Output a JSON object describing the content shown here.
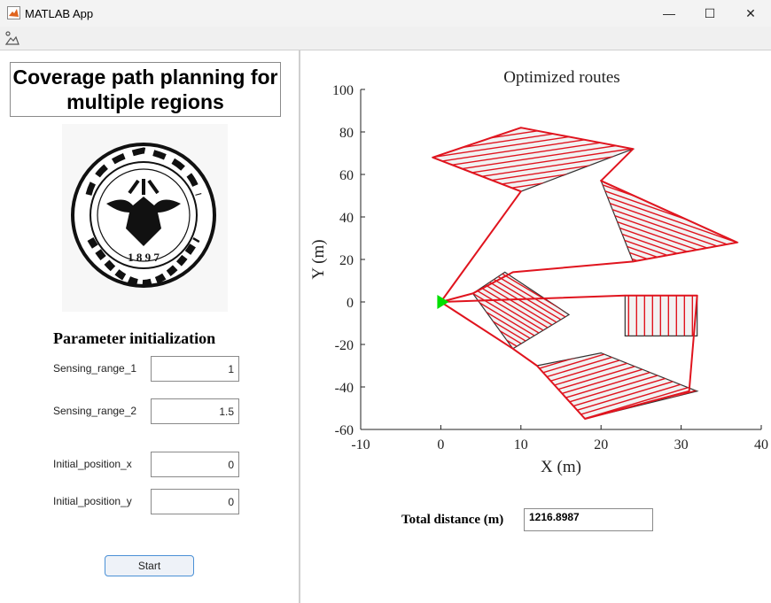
{
  "window": {
    "title": "MATLAB App",
    "minimize": "—",
    "maximize": "☐",
    "close": "✕"
  },
  "toolbar": {
    "icon": "figure-tools-icon"
  },
  "left": {
    "title": "Coverage path planning for multiple regions",
    "logo_text": "浙江大学 ZHEJIANG UNIVERSITY 1897",
    "param_heading": "Parameter initialization",
    "fields": [
      {
        "label": "Sensing_range_1",
        "value": "1"
      },
      {
        "label": "Sensing_range_2",
        "value": "1.5"
      },
      {
        "label": "Initial_position_x",
        "value": "0"
      },
      {
        "label": "Initial_position_y",
        "value": "0"
      }
    ],
    "start_label": "Start"
  },
  "chart_data": {
    "type": "line",
    "title": "Optimized routes",
    "xlabel": "X (m)",
    "ylabel": "Y (m)",
    "xlim": [
      -10,
      40
    ],
    "ylim": [
      -60,
      100
    ],
    "xticks": [
      "-10",
      "0",
      "10",
      "20",
      "30",
      "40"
    ],
    "yticks": [
      "100",
      "80",
      "60",
      "40",
      "20",
      "0",
      "-20",
      "-40",
      "-60"
    ],
    "start_point": [
      0,
      0
    ],
    "regions": [
      [
        [
          -1,
          68
        ],
        [
          10,
          82
        ],
        [
          24,
          72
        ],
        [
          10,
          52
        ]
      ],
      [
        [
          20,
          57
        ],
        [
          37,
          28
        ],
        [
          24,
          19
        ]
      ],
      [
        [
          8,
          14
        ],
        [
          16,
          -6
        ],
        [
          9,
          -22
        ],
        [
          4,
          4
        ]
      ],
      [
        [
          23,
          3
        ],
        [
          32,
          3
        ],
        [
          32,
          -16
        ],
        [
          23,
          -16
        ]
      ],
      [
        [
          12,
          -30
        ],
        [
          20,
          -24
        ],
        [
          32,
          -42
        ],
        [
          18,
          -55
        ]
      ]
    ],
    "route": [
      [
        0,
        0
      ],
      [
        10,
        52
      ],
      [
        -1,
        68
      ],
      [
        10,
        82
      ],
      [
        24,
        72
      ],
      [
        20,
        57
      ],
      [
        37,
        28
      ],
      [
        24,
        19
      ],
      [
        9,
        14
      ],
      [
        4,
        4
      ],
      [
        0,
        0
      ],
      [
        23,
        3
      ],
      [
        32,
        3
      ],
      [
        31,
        -42
      ],
      [
        18,
        -55
      ],
      [
        12,
        -30
      ],
      [
        9,
        -22
      ],
      [
        0,
        0
      ]
    ],
    "route_color": "#e0141e",
    "start_color": "#00e000"
  },
  "summary": {
    "label": "Total distance (m)",
    "value": "1216.8987"
  }
}
